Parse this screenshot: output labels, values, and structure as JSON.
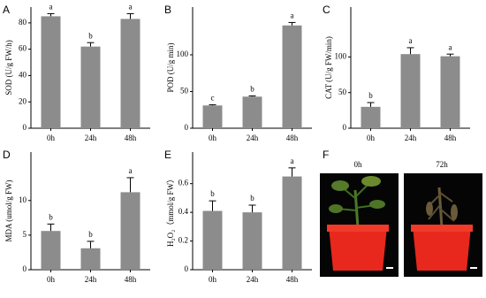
{
  "chart_data": [
    {
      "type": "bar",
      "label": "A",
      "ylabel": "SOD (U/g FW/h)",
      "categories": [
        "0h",
        "24h",
        "48h"
      ],
      "values": [
        85,
        62,
        83
      ],
      "errors": [
        2,
        3,
        4
      ],
      "letters": [
        "a",
        "b",
        "a"
      ],
      "color": "#8c8c8c",
      "ylim": [
        0,
        92
      ],
      "yticks": [
        0,
        20,
        40,
        60,
        80
      ]
    },
    {
      "type": "bar",
      "label": "B",
      "ylabel": "POD (U/g min)",
      "categories": [
        "0h",
        "24h",
        "48h"
      ],
      "values": [
        31,
        43,
        140
      ],
      "errors": [
        1,
        1,
        4
      ],
      "letters": [
        "c",
        "b",
        "a"
      ],
      "color": "#8c8c8c",
      "ylim": [
        0,
        165
      ],
      "yticks": [
        0,
        50,
        100
      ]
    },
    {
      "type": "bar",
      "label": "C",
      "ylabel": "CAT (U/g FW/min)",
      "categories": [
        "0h",
        "24h",
        "48h"
      ],
      "values": [
        30,
        104,
        101
      ],
      "errors": [
        6,
        9,
        3
      ],
      "letters": [
        "b",
        "a",
        "a"
      ],
      "color": "#8c8c8c",
      "ylim": [
        0,
        170
      ],
      "yticks": [
        0,
        50,
        100
      ]
    },
    {
      "type": "bar",
      "label": "D",
      "ylabel": "MDA (umol/g FW)",
      "categories": [
        "0h",
        "24h",
        "48h"
      ],
      "values": [
        5.6,
        3.1,
        11.2
      ],
      "errors": [
        1,
        1,
        2.1
      ],
      "letters": [
        "b",
        "b",
        "a"
      ],
      "color": "#8c8c8c",
      "ylim": [
        0,
        17
      ],
      "yticks": [
        0,
        5,
        10
      ]
    },
    {
      "type": "bar",
      "label": "E",
      "ylabel": "H₂O₂（mmol/g FW）",
      "categories": [
        "0h",
        "24h",
        "48h"
      ],
      "values": [
        0.41,
        0.4,
        0.65
      ],
      "errors": [
        0.07,
        0.05,
        0.06
      ],
      "letters": [
        "b",
        "b",
        "a"
      ],
      "color": "#8c8c8c",
      "ylim": [
        0,
        0.82
      ],
      "yticks": [
        0,
        0.2,
        0.4,
        0.6
      ]
    }
  ],
  "panel_f": {
    "label": "F",
    "captions": [
      "0h",
      "72h"
    ]
  }
}
